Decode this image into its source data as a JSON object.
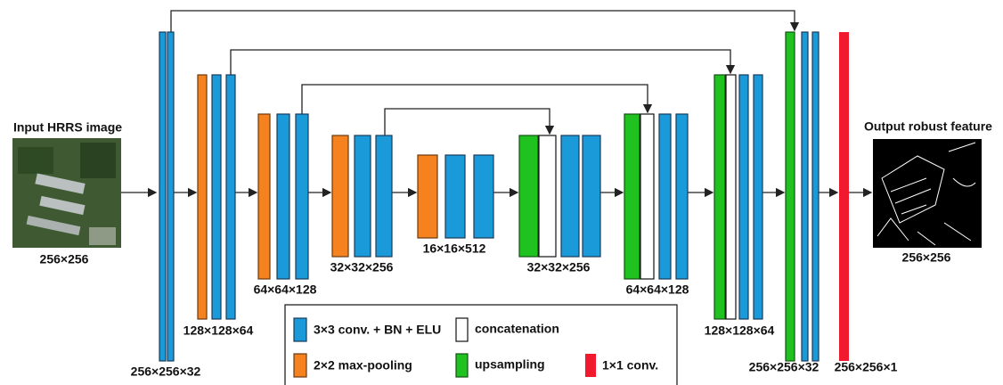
{
  "input": {
    "title": "Input HRRS image",
    "size": "256×256"
  },
  "output": {
    "title": "Output robust feature",
    "size": "256×256"
  },
  "blocks": [
    {
      "label": "256×256×32"
    },
    {
      "label": "128×128×64"
    },
    {
      "label": "64×64×128"
    },
    {
      "label": "32×32×256"
    },
    {
      "label": "16×16×512"
    },
    {
      "label": "32×32×256"
    },
    {
      "label": "64×64×128"
    },
    {
      "label": "128×128×64"
    },
    {
      "label": "256×256×32"
    },
    {
      "label": "256×256×1"
    }
  ],
  "legend": [
    {
      "label": "3×3 conv. + BN + ELU"
    },
    {
      "label": "concatenation"
    },
    {
      "label": "2×2 max-pooling"
    },
    {
      "label": "upsampling"
    },
    {
      "label": "1×1 conv."
    }
  ]
}
